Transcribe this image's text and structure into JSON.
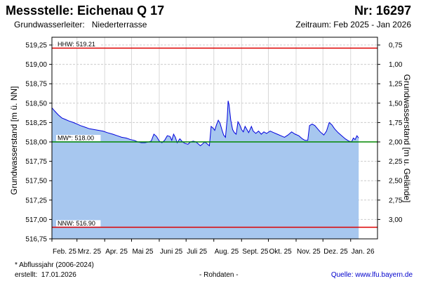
{
  "header": {
    "title": "Messstelle: Eichenau Q 17",
    "nr": "Nr: 16297",
    "aquifer_label": "Grundwasserleiter:",
    "aquifer_value": "Niederterrasse",
    "period": "Zeitraum: Feb 2025 - Jan 2026"
  },
  "footer": {
    "note": "* Abflussjahr (2006-2024)",
    "created_label": "erstellt:",
    "created_date": "17.01.2026",
    "raw": "- Rohdaten -",
    "source": "Quelle:  www.lfu.bayern.de"
  },
  "colors": {
    "line": "#0000dd",
    "fill": "#a7c7ef",
    "hhw": "#dd0000",
    "mw": "#008800",
    "nnw": "#dd0000",
    "grid": "#cccccc"
  },
  "chart_data": {
    "type": "area",
    "ylabel": "Grundwasserstand [m ü. NN]",
    "ylabel_right": "Grundwasserstand [m u. Gelände]",
    "ylim": [
      516.75,
      519.35
    ],
    "yticks": [
      "519,25",
      "519,00",
      "518,75",
      "518,50",
      "518,25",
      "518,00",
      "517,75",
      "517,50",
      "517,25",
      "517,00",
      "516,75"
    ],
    "yticks_right": [
      "0,75",
      "1,00",
      "1,25",
      "1,50",
      "1,75",
      "2,00",
      "2,25",
      "2,50",
      "2,75",
      "3,00"
    ],
    "xlim": [
      "2025-02-01",
      "2026-01-31"
    ],
    "xticks": [
      {
        "date": "2025-02-01",
        "label": "Feb. 25"
      },
      {
        "date": "2025-03-01",
        "label": "Mrz. 25"
      },
      {
        "date": "2025-04-01",
        "label": "Apr. 25"
      },
      {
        "date": "2025-05-01",
        "label": "Mai 25"
      },
      {
        "date": "2025-06-01",
        "label": "Juni 25"
      },
      {
        "date": "2025-07-01",
        "label": "Juli 25"
      },
      {
        "date": "2025-08-01",
        "label": "Aug. 25"
      },
      {
        "date": "2025-09-01",
        "label": "Sept. 25"
      },
      {
        "date": "2025-10-01",
        "label": "Okt. 25"
      },
      {
        "date": "2025-11-01",
        "label": "Nov. 25"
      },
      {
        "date": "2025-12-01",
        "label": "Dez. 25"
      },
      {
        "date": "2026-01-01",
        "label": "Jan. 26"
      }
    ],
    "grid": true,
    "reference_lines": [
      {
        "label": "HHW: 519.21",
        "value": 519.21,
        "key": "hhw"
      },
      {
        "label": "MW*: 518.00",
        "value": 518.0,
        "key": "mw"
      },
      {
        "label": "NNW: 516.90",
        "value": 516.9,
        "key": "nnw"
      }
    ],
    "series": [
      {
        "values": [
          [
            "2025-02-01",
            518.44
          ],
          [
            "2025-02-04",
            518.4
          ],
          [
            "2025-02-08",
            518.35
          ],
          [
            "2025-02-12",
            518.31
          ],
          [
            "2025-02-16",
            518.29
          ],
          [
            "2025-02-20",
            518.27
          ],
          [
            "2025-02-25",
            518.25
          ],
          [
            "2025-03-01",
            518.23
          ],
          [
            "2025-03-05",
            518.21
          ],
          [
            "2025-03-10",
            518.19
          ],
          [
            "2025-03-15",
            518.17
          ],
          [
            "2025-03-20",
            518.16
          ],
          [
            "2025-03-25",
            518.15
          ],
          [
            "2025-03-30",
            518.14
          ],
          [
            "2025-04-04",
            518.12
          ],
          [
            "2025-04-10",
            518.1
          ],
          [
            "2025-04-15",
            518.08
          ],
          [
            "2025-04-20",
            518.06
          ],
          [
            "2025-04-25",
            518.05
          ],
          [
            "2025-04-30",
            518.03
          ],
          [
            "2025-05-04",
            518.02
          ],
          [
            "2025-05-08",
            518.0
          ],
          [
            "2025-05-12",
            517.99
          ],
          [
            "2025-05-16",
            517.99
          ],
          [
            "2025-05-20",
            518.0
          ],
          [
            "2025-05-23",
            518.01
          ],
          [
            "2025-05-26",
            518.1
          ],
          [
            "2025-05-29",
            518.07
          ],
          [
            "2025-06-01",
            518.01
          ],
          [
            "2025-06-04",
            517.99
          ],
          [
            "2025-06-07",
            518.02
          ],
          [
            "2025-06-10",
            518.08
          ],
          [
            "2025-06-13",
            518.07
          ],
          [
            "2025-06-15",
            518.02
          ],
          [
            "2025-06-17",
            518.1
          ],
          [
            "2025-06-19",
            518.06
          ],
          [
            "2025-06-21",
            517.99
          ],
          [
            "2025-06-24",
            518.04
          ],
          [
            "2025-06-27",
            518.0
          ],
          [
            "2025-06-30",
            517.98
          ],
          [
            "2025-07-03",
            517.97
          ],
          [
            "2025-07-06",
            518.0
          ],
          [
            "2025-07-09",
            518.01
          ],
          [
            "2025-07-12",
            518.0
          ],
          [
            "2025-07-15",
            517.97
          ],
          [
            "2025-07-17",
            517.95
          ],
          [
            "2025-07-19",
            517.97
          ],
          [
            "2025-07-22",
            518.0
          ],
          [
            "2025-07-25",
            517.97
          ],
          [
            "2025-07-27",
            517.95
          ],
          [
            "2025-07-29",
            518.2
          ],
          [
            "2025-07-31",
            518.18
          ],
          [
            "2025-08-02",
            518.15
          ],
          [
            "2025-08-04",
            518.22
          ],
          [
            "2025-08-06",
            518.28
          ],
          [
            "2025-08-08",
            518.24
          ],
          [
            "2025-08-10",
            518.16
          ],
          [
            "2025-08-12",
            518.09
          ],
          [
            "2025-08-14",
            518.06
          ],
          [
            "2025-08-16",
            518.3
          ],
          [
            "2025-08-17",
            518.53
          ],
          [
            "2025-08-18",
            518.48
          ],
          [
            "2025-08-20",
            518.28
          ],
          [
            "2025-08-22",
            518.16
          ],
          [
            "2025-08-24",
            518.12
          ],
          [
            "2025-08-26",
            518.1
          ],
          [
            "2025-08-28",
            518.26
          ],
          [
            "2025-08-30",
            518.22
          ],
          [
            "2025-09-01",
            518.16
          ],
          [
            "2025-09-03",
            518.13
          ],
          [
            "2025-09-05",
            518.2
          ],
          [
            "2025-09-07",
            518.16
          ],
          [
            "2025-09-09",
            518.12
          ],
          [
            "2025-09-12",
            518.2
          ],
          [
            "2025-09-14",
            518.14
          ],
          [
            "2025-09-17",
            518.11
          ],
          [
            "2025-09-20",
            518.14
          ],
          [
            "2025-09-23",
            518.1
          ],
          [
            "2025-09-26",
            518.13
          ],
          [
            "2025-09-29",
            518.11
          ],
          [
            "2025-10-03",
            518.14
          ],
          [
            "2025-10-07",
            518.12
          ],
          [
            "2025-10-11",
            518.1
          ],
          [
            "2025-10-15",
            518.08
          ],
          [
            "2025-10-19",
            518.06
          ],
          [
            "2025-10-23",
            518.09
          ],
          [
            "2025-10-27",
            518.13
          ],
          [
            "2025-10-31",
            518.1
          ],
          [
            "2025-11-04",
            518.08
          ],
          [
            "2025-11-08",
            518.04
          ],
          [
            "2025-11-11",
            518.02
          ],
          [
            "2025-11-14",
            518.02
          ],
          [
            "2025-11-16",
            518.21
          ],
          [
            "2025-11-19",
            518.23
          ],
          [
            "2025-11-22",
            518.21
          ],
          [
            "2025-11-25",
            518.17
          ],
          [
            "2025-11-28",
            518.13
          ],
          [
            "2025-12-02",
            518.09
          ],
          [
            "2025-12-05",
            518.14
          ],
          [
            "2025-12-08",
            518.25
          ],
          [
            "2025-12-11",
            518.22
          ],
          [
            "2025-12-14",
            518.17
          ],
          [
            "2025-12-18",
            518.12
          ],
          [
            "2025-12-22",
            518.08
          ],
          [
            "2025-12-26",
            518.04
          ],
          [
            "2025-12-30",
            518.01
          ],
          [
            "2026-01-02",
            518.0
          ],
          [
            "2026-01-04",
            518.05
          ],
          [
            "2026-01-06",
            518.03
          ],
          [
            "2026-01-08",
            518.08
          ],
          [
            "2026-01-10",
            518.05
          ]
        ]
      }
    ]
  }
}
